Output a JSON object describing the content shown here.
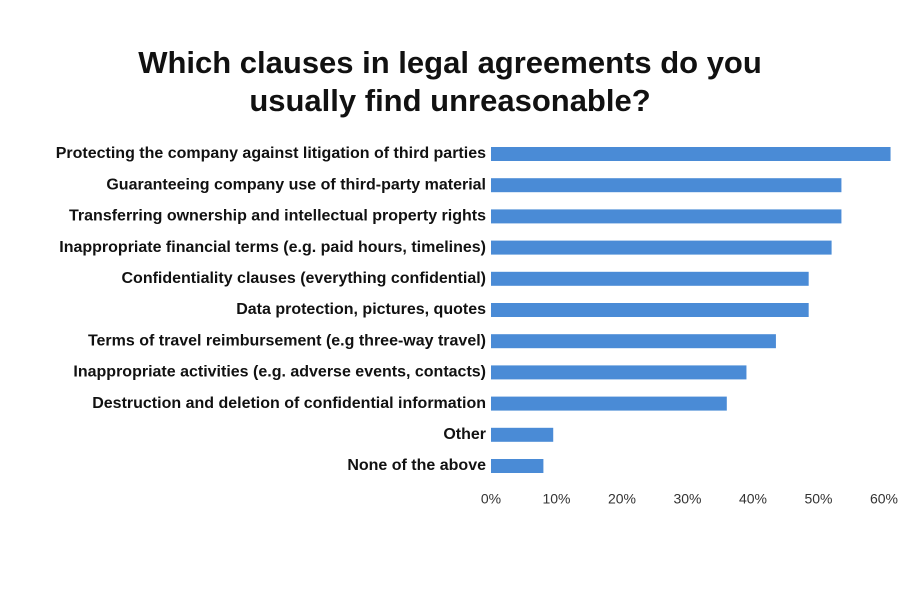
{
  "chart_data": {
    "type": "bar",
    "orientation": "horizontal",
    "title": "Which clauses in legal agreements do you usually find unreasonable?",
    "categories": [
      "Protecting the company against litigation of third parties",
      "Guaranteeing company use of third-party material",
      "Transferring ownership and intellectual property rights",
      "Inappropriate financial terms (e.g. paid hours, timelines)",
      "Confidentiality clauses (everything confidential)",
      "Data protection, pictures, quotes",
      "Terms of travel reimbursement (e.g three-way travel)",
      "Inappropriate activities (e.g. adverse events, contacts)",
      "Destruction and deletion of confidential information",
      "Other",
      "None of the above"
    ],
    "values": [
      61,
      53.5,
      53.5,
      52,
      48.5,
      48.5,
      43.5,
      39,
      36,
      9.5,
      8
    ],
    "color": "#4a8bd6",
    "xlim": [
      0,
      60
    ],
    "xticks": [
      {
        "value": 0,
        "label": "0%"
      },
      {
        "value": 10,
        "label": "10%"
      },
      {
        "value": 20,
        "label": "20%"
      },
      {
        "value": 30,
        "label": "30%"
      },
      {
        "value": 40,
        "label": "40%"
      },
      {
        "value": 50,
        "label": "50%"
      },
      {
        "value": 60,
        "label": "60%"
      }
    ],
    "grid": false
  }
}
